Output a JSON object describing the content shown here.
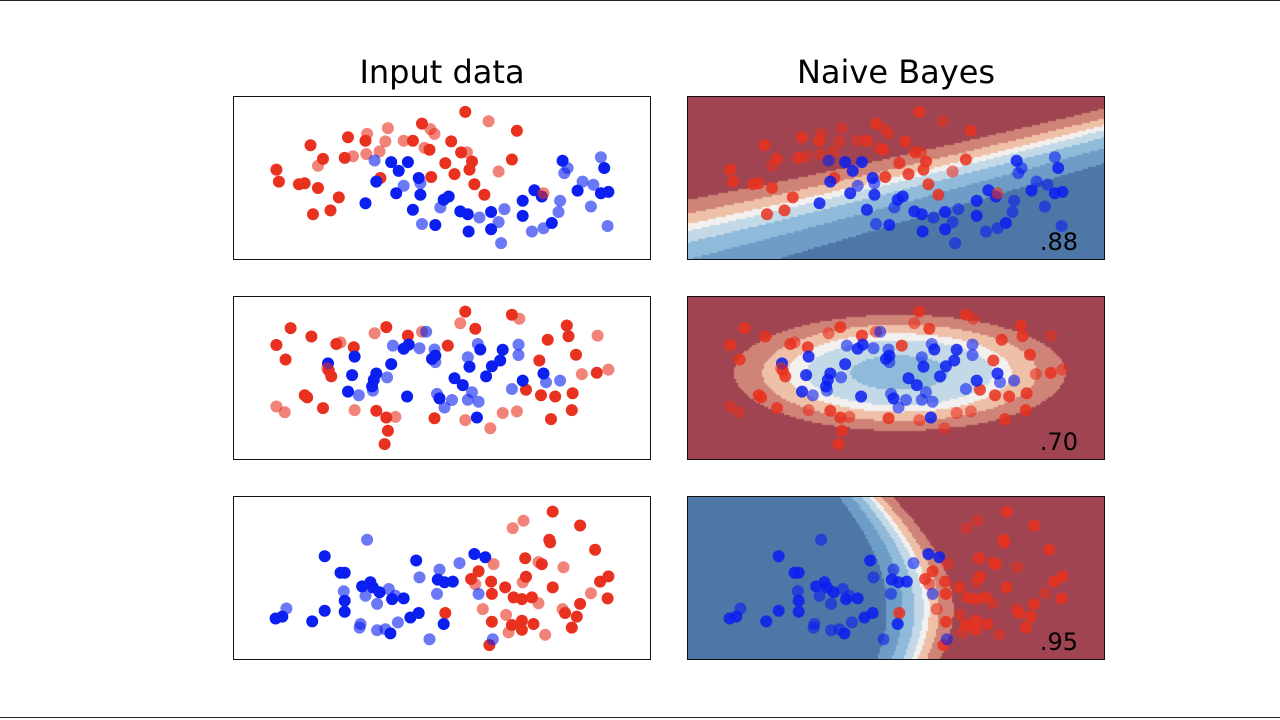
{
  "titles": {
    "input": "Input data",
    "classifier": "Naive Bayes"
  },
  "colors": {
    "red_class": "#e8311f",
    "blue_class": "#0a1ff0",
    "surface_bands": [
      "#9f4450",
      "#d08377",
      "#efc0a8",
      "#f3f1ef",
      "#c3d9e8",
      "#8fbad9",
      "#6d9cc6",
      "#4e76a6"
    ]
  },
  "chart_data": [
    {
      "type": "scatter",
      "xlim": [
        -2.5,
        2.5
      ],
      "ylim": [
        -2.5,
        2.5
      ],
      "grid": false,
      "score": ".88",
      "train": {
        "red": [
          [
            0.28,
            2.04
          ],
          [
            0.9,
            1.46
          ],
          [
            -0.24,
            1.68
          ],
          [
            -1.13,
            1.26
          ],
          [
            -0.92,
            1.15
          ],
          [
            -0.35,
            1.15
          ],
          [
            0.11,
            1.13
          ],
          [
            -1.58,
            1.01
          ],
          [
            -0.15,
            0.87
          ],
          [
            0.23,
            0.79
          ],
          [
            -1.43,
            0.59
          ],
          [
            -1.17,
            0.62
          ],
          [
            0.04,
            0.46
          ],
          [
            0.36,
            0.51
          ],
          [
            0.84,
            0.57
          ],
          [
            -1.99,
            0.26
          ],
          [
            -1.96,
            -0.11
          ],
          [
            -1.72,
            -0.19
          ],
          [
            -1.65,
            -0.16
          ],
          [
            -1.49,
            -0.31
          ],
          [
            -0.74,
            0.0
          ],
          [
            -0.13,
            0.03
          ],
          [
            0.15,
            0.12
          ],
          [
            0.33,
            0.26
          ],
          [
            0.39,
            -0.19
          ],
          [
            0.51,
            -0.52
          ],
          [
            -1.24,
            -0.6
          ],
          [
            -1.34,
            -1.0
          ],
          [
            -1.55,
            -1.12
          ]
        ],
        "blue": [
          [
            -0.61,
            0.49
          ],
          [
            -0.41,
            0.49
          ],
          [
            -0.52,
            0.22
          ],
          [
            -0.28,
            0.0
          ],
          [
            -0.79,
            -0.11
          ],
          [
            -0.55,
            -0.47
          ],
          [
            -0.26,
            -0.52
          ],
          [
            0.08,
            -0.57
          ],
          [
            0.02,
            -0.67
          ],
          [
            -0.92,
            -0.78
          ],
          [
            -0.35,
            -0.98
          ],
          [
            0.22,
            -1.03
          ],
          [
            0.31,
            -1.12
          ],
          [
            0.59,
            -1.05
          ],
          [
            0.97,
            -0.7
          ],
          [
            1.11,
            -0.38
          ],
          [
            1.2,
            -0.57
          ],
          [
            0.97,
            -1.17
          ],
          [
            1.32,
            -1.39
          ],
          [
            0.59,
            -1.58
          ],
          [
            0.32,
            -1.65
          ],
          [
            -0.08,
            -1.45
          ],
          [
            1.45,
            0.53
          ],
          [
            1.95,
            0.31
          ],
          [
            1.63,
            -0.39
          ],
          [
            1.91,
            -0.47
          ],
          [
            2.0,
            -0.43
          ]
        ]
      },
      "test": {
        "red": [
          [
            0.56,
            1.75
          ],
          [
            -0.65,
            1.54
          ],
          [
            -0.9,
            1.36
          ],
          [
            -0.14,
            1.51
          ],
          [
            -0.09,
            1.36
          ],
          [
            -0.68,
            1.13
          ],
          [
            -0.46,
            1.15
          ],
          [
            -0.21,
            0.93
          ],
          [
            0.3,
            0.79
          ],
          [
            -1.07,
            0.67
          ],
          [
            -0.91,
            0.74
          ],
          [
            -0.75,
            0.82
          ],
          [
            -1.49,
            0.38
          ],
          [
            0.68,
            0.2
          ],
          [
            1.22,
            -0.47
          ]
        ],
        "blue": [
          [
            -0.81,
            0.54
          ],
          [
            -0.46,
            -0.24
          ],
          [
            -0.26,
            -0.16
          ],
          [
            -0.02,
            -0.91
          ],
          [
            0.45,
            -1.22
          ],
          [
            0.68,
            -1.36
          ],
          [
            0.75,
            -0.96
          ],
          [
            0.71,
            -2.01
          ],
          [
            -0.24,
            -1.42
          ],
          [
            1.08,
            -1.65
          ],
          [
            1.22,
            -1.55
          ],
          [
            1.42,
            -0.7
          ],
          [
            1.4,
            -1.05
          ],
          [
            1.47,
            0.15
          ],
          [
            1.51,
            0.31
          ],
          [
            1.69,
            -0.11
          ],
          [
            1.82,
            -0.21
          ],
          [
            1.79,
            -0.88
          ],
          [
            1.91,
            0.64
          ],
          [
            1.99,
            -1.48
          ]
        ]
      }
    },
    {
      "type": "scatter",
      "xlim": [
        -2.5,
        2.5
      ],
      "ylim": [
        -2.5,
        2.5
      ],
      "grid": false,
      "score": ".70",
      "train": {
        "red": [
          [
            -1.82,
            1.54
          ],
          [
            -1.57,
            1.28
          ],
          [
            -1.99,
            1.02
          ],
          [
            -1.88,
            0.57
          ],
          [
            -1.27,
            1.05
          ],
          [
            -1.06,
            0.95
          ],
          [
            -1.36,
            0.23
          ],
          [
            -1.33,
            0.05
          ],
          [
            -0.67,
            1.57
          ],
          [
            -0.41,
            1.31
          ],
          [
            0.28,
            2.05
          ],
          [
            0.4,
            1.52
          ],
          [
            0.07,
            1.0
          ],
          [
            0.84,
            1.95
          ],
          [
            1.5,
            1.62
          ],
          [
            1.52,
            1.29
          ],
          [
            1.27,
            1.18
          ],
          [
            1.61,
            0.72
          ],
          [
            1.17,
            0.54
          ],
          [
            1.86,
            0.16
          ],
          [
            1.01,
            -0.36
          ],
          [
            1.19,
            -0.53
          ],
          [
            1.36,
            -0.57
          ],
          [
            1.57,
            -0.47
          ],
          [
            1.56,
            -0.99
          ],
          [
            1.31,
            -1.27
          ],
          [
            -1.65,
            -0.53
          ],
          [
            -1.62,
            -0.6
          ],
          [
            -1.43,
            -0.93
          ],
          [
            -0.79,
            -1.01
          ],
          [
            -0.67,
            -1.22
          ],
          [
            -0.65,
            -1.63
          ],
          [
            -0.69,
            -2.04
          ],
          [
            -0.09,
            -1.24
          ]
        ],
        "blue": [
          [
            -1.37,
            0.45
          ],
          [
            -1.05,
            0.66
          ],
          [
            -1.08,
            0.09
          ],
          [
            -1.13,
            -0.42
          ],
          [
            -0.79,
            0.14
          ],
          [
            -0.82,
            -0.06
          ],
          [
            -0.84,
            -0.26
          ],
          [
            -0.61,
            0.43
          ],
          [
            -0.46,
            0.9
          ],
          [
            -0.4,
            1.03
          ],
          [
            -0.42,
            -0.57
          ],
          [
            -0.12,
            0.59
          ],
          [
            -0.08,
            0.69
          ],
          [
            0.33,
            0.35
          ],
          [
            0.46,
            0.88
          ],
          [
            0.73,
            0.87
          ],
          [
            0.7,
            0.54
          ],
          [
            0.6,
            0.36
          ],
          [
            0.53,
            0.05
          ],
          [
            0.15,
            -0.01
          ],
          [
            0.25,
            -0.22
          ],
          [
            -0.03,
            -0.63
          ],
          [
            0.42,
            -1.22
          ],
          [
            0.97,
            -0.08
          ],
          [
            1.22,
            0.14
          ]
        ]
      },
      "test": {
        "red": [
          [
            -0.81,
            1.38
          ],
          [
            -1.22,
            1.1
          ],
          [
            -0.24,
            1.43
          ],
          [
            0.22,
            1.69
          ],
          [
            0.93,
            1.83
          ],
          [
            1.87,
            1.31
          ],
          [
            1.68,
            0.12
          ],
          [
            2.0,
            0.26
          ],
          [
            -1.99,
            -0.88
          ],
          [
            -1.89,
            -1.06
          ],
          [
            -1.05,
            -0.99
          ],
          [
            -0.56,
            -1.2
          ],
          [
            0.28,
            -1.3
          ],
          [
            0.58,
            -1.55
          ],
          [
            0.73,
            -1.08
          ],
          [
            0.9,
            -1.03
          ],
          [
            -1.38,
            0.3
          ]
        ],
        "blue": [
          [
            -0.59,
            1.0
          ],
          [
            -0.27,
            0.92
          ],
          [
            -0.19,
            1.43
          ],
          [
            -0.09,
            0.88
          ],
          [
            -0.08,
            0.49
          ],
          [
            -0.66,
            0.02
          ],
          [
            -0.83,
            -0.39
          ],
          [
            -1.0,
            -0.53
          ],
          [
            -0.06,
            -0.49
          ],
          [
            0.12,
            -0.68
          ],
          [
            0.03,
            -0.91
          ],
          [
            0.31,
            0.64
          ],
          [
            0.43,
            1.05
          ],
          [
            0.36,
            -0.44
          ],
          [
            0.31,
            -0.67
          ],
          [
            0.44,
            -0.73
          ],
          [
            0.92,
            1.03
          ],
          [
            0.92,
            0.71
          ],
          [
            0.84,
            -0.34
          ],
          [
            1.25,
            -0.13
          ],
          [
            1.42,
            -0.08
          ]
        ]
      }
    },
    {
      "type": "scatter",
      "xlim": [
        -2.5,
        2.5
      ],
      "ylim": [
        -2.5,
        2.5
      ],
      "grid": false,
      "score": ".95",
      "train": {
        "red": [
          [
            1.33,
            2.05
          ],
          [
            1.66,
            1.62
          ],
          [
            1.29,
            1.18
          ],
          [
            1.3,
            1.1
          ],
          [
            1.84,
            0.87
          ],
          [
            1.0,
            0.61
          ],
          [
            1.2,
            0.43
          ],
          [
            0.44,
            0.21
          ],
          [
            0.35,
            -0.03
          ],
          [
            1.01,
            0.04
          ],
          [
            0.59,
            -0.11
          ],
          [
            0.76,
            -0.29
          ],
          [
            1.33,
            -0.29
          ],
          [
            0.6,
            -0.49
          ],
          [
            0.86,
            -0.6
          ],
          [
            0.96,
            -0.65
          ],
          [
            1.08,
            -0.6
          ],
          [
            1.9,
            -0.11
          ],
          [
            2.0,
            0.05
          ],
          [
            1.99,
            -0.63
          ],
          [
            1.66,
            -0.8
          ],
          [
            1.48,
            -1.08
          ],
          [
            1.62,
            -1.19
          ],
          [
            1.56,
            -1.53
          ],
          [
            0.04,
            -1.08
          ],
          [
            0.6,
            -1.35
          ],
          [
            0.96,
            -1.32
          ],
          [
            1.1,
            -1.42
          ],
          [
            0.96,
            -1.6
          ],
          [
            0.84,
            -1.45
          ],
          [
            0.57,
            -2.07
          ]
        ],
        "blue": [
          [
            -1.41,
            0.67
          ],
          [
            -1.17,
            0.16
          ],
          [
            -1.22,
            0.16
          ],
          [
            -0.96,
            -0.26
          ],
          [
            -0.86,
            -0.13
          ],
          [
            -0.83,
            -0.29
          ],
          [
            -0.75,
            -0.44
          ],
          [
            -0.6,
            -0.65
          ],
          [
            -0.46,
            -0.63
          ],
          [
            -1.17,
            -0.7
          ],
          [
            -1.17,
            -1.04
          ],
          [
            -1.41,
            -1.01
          ],
          [
            -1.56,
            -1.34
          ],
          [
            -2.0,
            -1.25
          ],
          [
            -1.92,
            -1.19
          ],
          [
            -0.62,
            -1.71
          ],
          [
            -0.38,
            -1.22
          ],
          [
            -0.28,
            -1.08
          ],
          [
            -0.31,
            0.54
          ],
          [
            -0.05,
            -0.05
          ],
          [
            0.03,
            -0.13
          ],
          [
            0.13,
            -0.11
          ],
          [
            0.39,
            0.74
          ],
          [
            0.52,
            0.64
          ],
          [
            0.02,
            -1.42
          ]
        ]
      },
      "test": {
        "red": [
          [
            0.85,
            1.54
          ],
          [
            0.98,
            1.77
          ],
          [
            0.62,
            0.43
          ],
          [
            1.16,
            0.49
          ],
          [
            1.46,
            0.33
          ],
          [
            0.97,
            -0.13
          ],
          [
            0.4,
            -0.19
          ],
          [
            1.16,
            -0.78
          ],
          [
            1.79,
            -0.47
          ],
          [
            0.49,
            -0.96
          ],
          [
            0.77,
            -1.14
          ],
          [
            1.45,
            -0.96
          ],
          [
            0.8,
            -1.68
          ],
          [
            1.24,
            -1.75
          ]
        ],
        "blue": [
          [
            -0.9,
            1.18
          ],
          [
            -1.18,
            -0.41
          ],
          [
            -0.92,
            -0.55
          ],
          [
            -0.78,
            -0.8
          ],
          [
            -0.64,
            -0.34
          ],
          [
            -0.56,
            -0.55
          ],
          [
            -0.98,
            -1.42
          ],
          [
            -0.99,
            -1.53
          ],
          [
            -0.78,
            -1.61
          ],
          [
            -0.68,
            -1.58
          ],
          [
            -0.53,
            -1.37
          ],
          [
            -0.27,
            0.02
          ],
          [
            -0.03,
            0.26
          ],
          [
            -0.06,
            -0.49
          ],
          [
            -0.15,
            -1.89
          ],
          [
            0.21,
            0.46
          ],
          [
            0.44,
            -0.49
          ],
          [
            0.61,
            -1.89
          ],
          [
            -1.87,
            -0.94
          ]
        ]
      }
    }
  ]
}
